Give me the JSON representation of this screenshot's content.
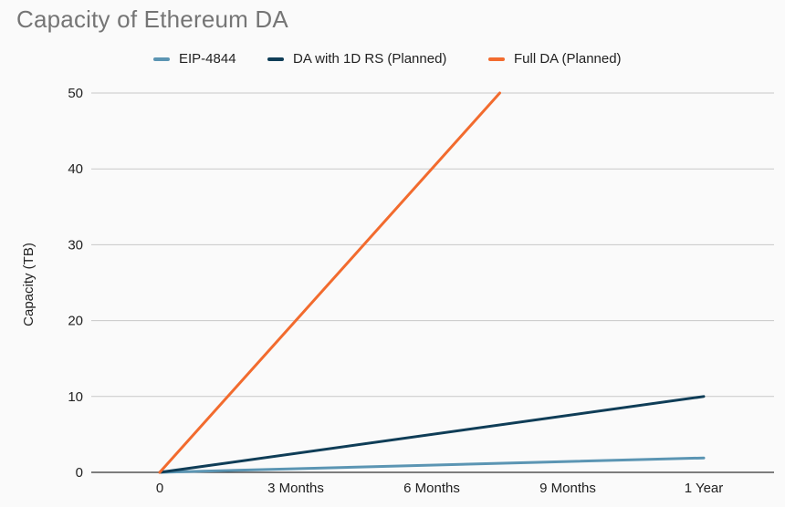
{
  "chart_data": {
    "type": "line",
    "title": "Capacity of Ethereum DA",
    "ylabel": "Capacity (TB)",
    "xlabel": "",
    "categories": [
      "0",
      "3 Months",
      "6 Months",
      "9 Months",
      "1 Year"
    ],
    "x_values": [
      0,
      3,
      6,
      9,
      12
    ],
    "ylim": [
      0,
      50
    ],
    "yticks": [
      0,
      10,
      20,
      30,
      40,
      50
    ],
    "grid": true,
    "legend_position": "top",
    "series": [
      {
        "name": "EIP-4844",
        "color": "#5b95b3",
        "x": [
          0,
          12
        ],
        "values": [
          0,
          1.9
        ]
      },
      {
        "name": "DA with 1D RS (Planned)",
        "color": "#0f3d57",
        "x": [
          0,
          12
        ],
        "values": [
          0,
          10
        ]
      },
      {
        "name": "Full DA (Planned)",
        "color": "#f26b2e",
        "x": [
          0,
          7.5
        ],
        "values": [
          0,
          50
        ]
      }
    ]
  }
}
